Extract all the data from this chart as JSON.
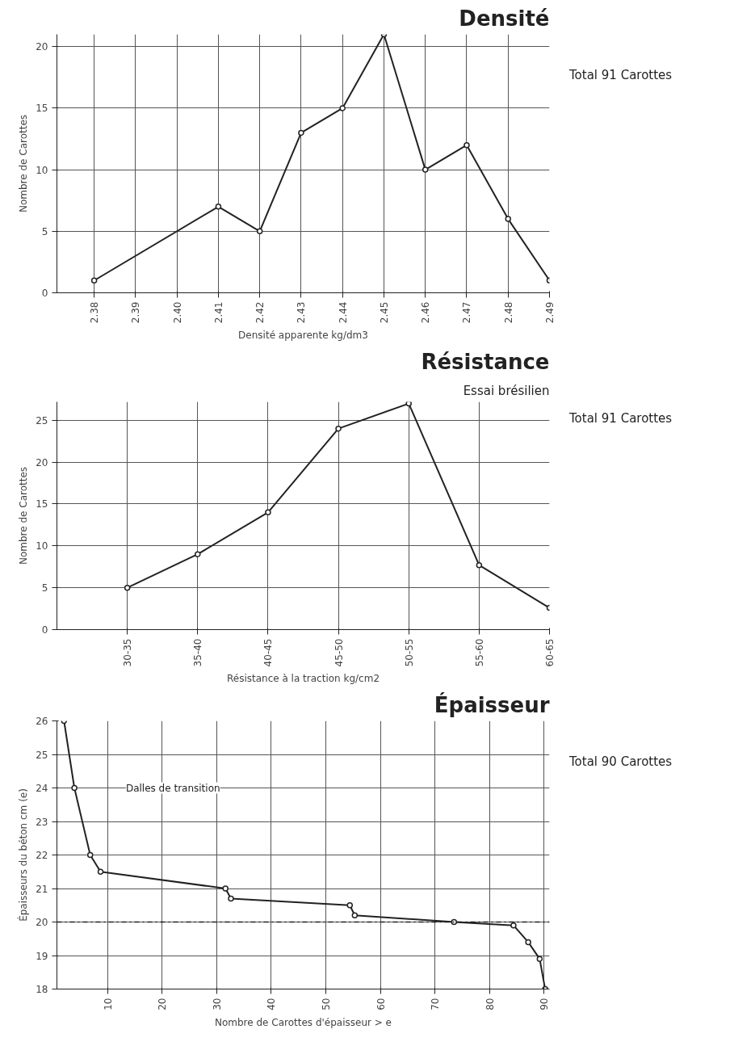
{
  "chart_data": [
    {
      "type": "line",
      "title": "Densité",
      "annotations": [
        "Total 91 Carottes"
      ],
      "xlabel": "Densité apparente kg/dm3",
      "ylabel": "Nombre de Carottes",
      "color": "#222222",
      "marker": "circle",
      "grid": true,
      "x": [
        2.38,
        2.41,
        2.42,
        2.43,
        2.44,
        2.45,
        2.46,
        2.47,
        2.48,
        2.49
      ],
      "values": [
        1,
        7,
        5,
        13,
        15,
        21,
        10,
        12,
        6,
        1
      ],
      "xlim": [
        2.371,
        2.49
      ],
      "xticks": [
        2.38,
        2.39,
        {
          "value": 2.4,
          "label": "2.40"
        },
        2.41,
        2.42,
        2.43,
        2.44,
        2.45,
        2.46,
        2.47,
        2.48,
        2.49
      ],
      "ylim": [
        0,
        21
      ],
      "yticks": [
        0,
        5,
        10,
        15,
        20
      ]
    },
    {
      "type": "line",
      "title": "Résistance",
      "subtitle": "Essai brésilien",
      "annotations": [
        "Total 91 Carottes"
      ],
      "xlabel": "Résistance à la traction kg/cm2",
      "ylabel": "Nombre de Carottes",
      "color": "#222222",
      "marker": "circle",
      "grid": true,
      "categories": [
        "30-35",
        "35-40",
        "40-45",
        "45-50",
        "50-55",
        "55-60",
        "60-65"
      ],
      "values": [
        5,
        9,
        14,
        24,
        27,
        7.7,
        2.6
      ],
      "ylim": [
        0,
        27.2
      ],
      "yticks": [
        0,
        5,
        10,
        15,
        20,
        25
      ]
    },
    {
      "type": "line",
      "title": "Épaisseur",
      "annotations": [
        "Total 90 Carottes",
        "Dalles de transition"
      ],
      "xlabel": "Nombre de Carottes d'épaisseur > e",
      "ylabel": "Épaisseurs du béton cm (e)",
      "color": "#222222",
      "marker": "circle",
      "grid": true,
      "x": [
        2,
        3.9,
        6.8,
        8.7,
        31.6,
        32.6,
        54.4,
        55.3,
        73.5,
        84.4,
        87.1,
        89.2,
        90.2
      ],
      "values": [
        26,
        24,
        22,
        21.5,
        21,
        20.7,
        20.5,
        20.2,
        20,
        19.9,
        19.4,
        18.9,
        18
      ],
      "xlim": [
        0.7,
        91
      ],
      "xticks": [
        10,
        20,
        30,
        40,
        50,
        60,
        70,
        80,
        90
      ],
      "ylim": [
        18,
        26
      ],
      "yticks": [
        18,
        19,
        20,
        21,
        22,
        23,
        24,
        25,
        26
      ],
      "ref_lines": [
        {
          "axis": "y",
          "value": 20,
          "line_style": "dashdot",
          "color": "#222222"
        }
      ]
    }
  ]
}
